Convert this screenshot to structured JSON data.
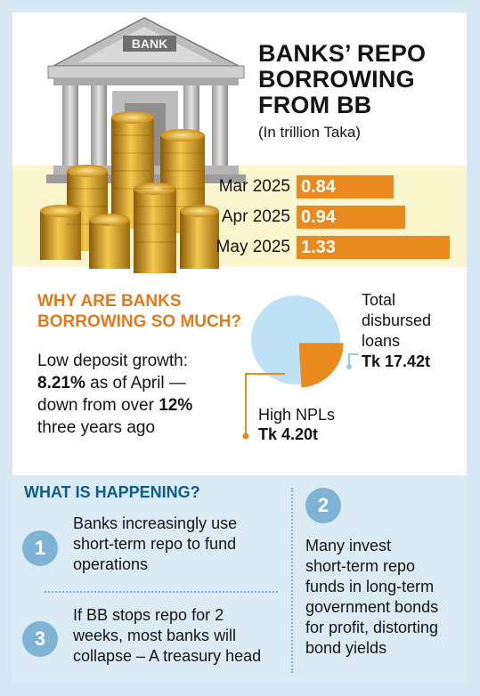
{
  "header": {
    "title_line1": "BANKS’ REPO",
    "title_line2": "BORROWING",
    "title_line3": "FROM BB",
    "subtitle": "(In trillion Taka)",
    "bank_sign": "BANK"
  },
  "chart_data": [
    {
      "type": "bar",
      "title": "BANKS’ REPO BORROWING FROM BB",
      "subtitle": "(In trillion Taka)",
      "categories": [
        "Mar 2025",
        "Apr 2025",
        "May 2025"
      ],
      "values": [
        0.84,
        0.94,
        1.33
      ],
      "value_labels": [
        "0.84",
        "0.94",
        "1.33"
      ],
      "orientation": "horizontal",
      "colors": {
        "bar": "#e88a1e",
        "value_text": "#ffffff"
      }
    },
    {
      "type": "pie",
      "slices": [
        {
          "label": "Total disbursed loans",
          "value": 17.42,
          "value_label": "Tk 17.42t",
          "color": "#bfe1f6"
        },
        {
          "label": "High NPLs",
          "value": 4.2,
          "value_label": "Tk 4.20t",
          "color": "#e88a1e"
        }
      ]
    }
  ],
  "why": {
    "title_line1": "WHY ARE BANKS",
    "title_line2": "BORROWING SO MUCH?",
    "line1": "Low deposit growth:",
    "line2_bold": "8.21%",
    "line2_rest": " as of April —",
    "line3_pre": "down from over ",
    "line3_bold": "12%",
    "line4": "three years ago"
  },
  "pie_labels": {
    "loans_line1": "Total",
    "loans_line2": "disbursed",
    "loans_line3": "loans",
    "loans_value": "Tk 17.42t",
    "npl_line1": "High NPLs",
    "npl_value": "Tk 4.20t"
  },
  "happening": {
    "title": "WHAT IS HAPPENING?",
    "items": [
      {
        "num": "1",
        "lines": [
          "Banks increasingly use",
          "short-term repo to fund",
          "operations"
        ]
      },
      {
        "num": "2",
        "lines": [
          "Many invest",
          "short-term repo",
          "funds in long-term",
          "government bonds",
          "for profit, distorting",
          "bond yields"
        ]
      },
      {
        "num": "3",
        "lines": [
          "If BB stops repo for 2",
          "weeks, most banks will",
          "collapse – A treasury head"
        ]
      }
    ]
  },
  "colors": {
    "accent_orange": "#e88a1e",
    "heading_orange": "#e07a1a",
    "heading_blue": "#0f5c85",
    "pie_blue": "#bfe1f6",
    "circle_blue": "#7fb3d4",
    "yellow_band": "#fcf6cf",
    "bottom_bg": "#dbebf5",
    "frame_bg": "#d5e8f4"
  }
}
